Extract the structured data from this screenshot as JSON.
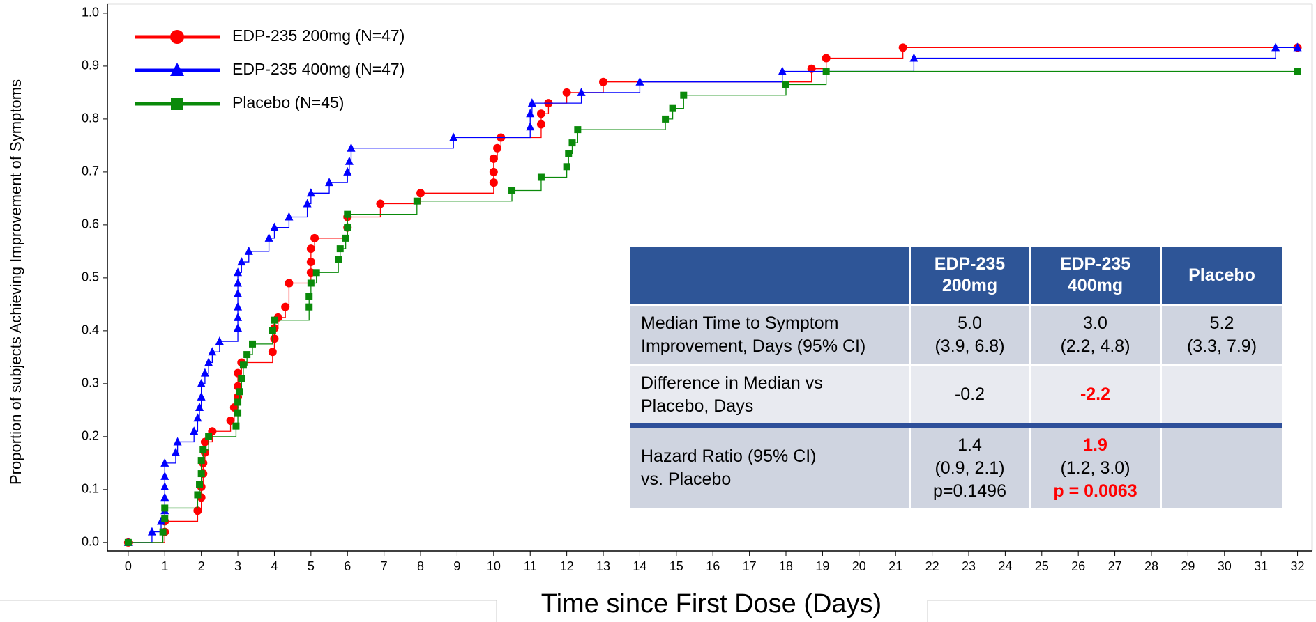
{
  "chart_data": {
    "type": "step",
    "ylabel": "Proportion of subjects Achieving Improvement of Symptoms",
    "xlabel": "Time since First Dose (Days)",
    "xlim": [
      -0.57,
      32.39
    ],
    "ylim": [
      -0.016,
      1.017
    ],
    "xticks": [
      0,
      1,
      2,
      3,
      4,
      5,
      6,
      7,
      8,
      9,
      10,
      11,
      12,
      13,
      14,
      15,
      16,
      17,
      18,
      19,
      20,
      21,
      22,
      23,
      24,
      25,
      26,
      27,
      28,
      29,
      30,
      31,
      32
    ],
    "yticks": [
      {
        "value": 0,
        "label": "0.0"
      },
      0.1,
      0.2,
      0.3,
      0.4,
      0.5,
      0.6,
      0.7,
      0.8,
      0.9,
      {
        "value": 1,
        "label": "1.0"
      }
    ],
    "legend": "upper left",
    "series": [
      {
        "name": "EDP-235 200mg (N=47)",
        "color": "#ff0000",
        "marker": "circle",
        "x": [
          0,
          1,
          1,
          1.9,
          2,
          2,
          2.05,
          2.05,
          2.1,
          2.1,
          2.3,
          2.8,
          2.9,
          3,
          3,
          3,
          3.1,
          3.95,
          4,
          4,
          4.1,
          4.3,
          4.4,
          5,
          5,
          5,
          5.1,
          6,
          6,
          6.9,
          8,
          10,
          10,
          10,
          10.1,
          10.2,
          11.3,
          11.3,
          11.5,
          12,
          13,
          18.7,
          19.1,
          21.2,
          32
        ],
        "values": [
          0,
          0.02,
          0.04,
          0.06,
          0.085,
          0.105,
          0.13,
          0.15,
          0.17,
          0.19,
          0.21,
          0.23,
          0.255,
          0.275,
          0.295,
          0.32,
          0.34,
          0.36,
          0.385,
          0.405,
          0.425,
          0.445,
          0.49,
          0.51,
          0.53,
          0.555,
          0.575,
          0.595,
          0.615,
          0.64,
          0.66,
          0.68,
          0.7,
          0.725,
          0.745,
          0.765,
          0.79,
          0.81,
          0.83,
          0.85,
          0.87,
          0.895,
          0.915,
          0.935,
          0.935
        ]
      },
      {
        "name": "EDP-235 400mg (N=47)",
        "color": "#0000ff",
        "marker": "triangle",
        "x": [
          0,
          0.65,
          0.9,
          1,
          1,
          1,
          1,
          1,
          1.3,
          1.35,
          1.8,
          1.9,
          1.95,
          2,
          2,
          2.1,
          2.2,
          2.3,
          2.5,
          3,
          3,
          3,
          3,
          3,
          3,
          3.1,
          3.3,
          3.85,
          4,
          4.4,
          4.9,
          5,
          5.5,
          6,
          6.05,
          6.1,
          8.9,
          11,
          11,
          11.05,
          12.4,
          14,
          17.9,
          21.5,
          31.4,
          32
        ],
        "values": [
          0,
          0.02,
          0.04,
          0.06,
          0.085,
          0.105,
          0.125,
          0.15,
          0.17,
          0.19,
          0.21,
          0.235,
          0.255,
          0.275,
          0.3,
          0.32,
          0.34,
          0.36,
          0.38,
          0.405,
          0.425,
          0.445,
          0.47,
          0.49,
          0.51,
          0.53,
          0.55,
          0.575,
          0.595,
          0.615,
          0.64,
          0.66,
          0.68,
          0.7,
          0.72,
          0.745,
          0.765,
          0.785,
          0.81,
          0.83,
          0.85,
          0.87,
          0.89,
          0.915,
          0.935,
          0.935
        ]
      },
      {
        "name": "Placebo (N=45)",
        "color": "#0a8a0a",
        "marker": "square",
        "x": [
          0,
          0.95,
          1,
          1,
          1.9,
          1.95,
          2,
          2,
          2.05,
          2.2,
          2.95,
          3,
          3,
          3.05,
          3.1,
          3.15,
          3.25,
          3.4,
          3.95,
          4,
          4.95,
          4.95,
          5,
          5.15,
          5.75,
          5.8,
          5.95,
          6,
          6,
          7.9,
          10.5,
          11.3,
          12,
          12.05,
          12.15,
          12.3,
          14.7,
          14.9,
          15.2,
          18,
          19.1,
          32
        ],
        "values": [
          0,
          0.02,
          0.045,
          0.065,
          0.09,
          0.11,
          0.13,
          0.155,
          0.175,
          0.2,
          0.22,
          0.245,
          0.265,
          0.285,
          0.31,
          0.335,
          0.355,
          0.375,
          0.4,
          0.42,
          0.445,
          0.465,
          0.49,
          0.51,
          0.535,
          0.555,
          0.575,
          0.595,
          0.62,
          0.645,
          0.665,
          0.69,
          0.71,
          0.735,
          0.755,
          0.78,
          0.8,
          0.82,
          0.845,
          0.865,
          0.89,
          0.89
        ]
      }
    ]
  },
  "table": {
    "header": [
      [],
      [
        "EDP-235",
        "200mg"
      ],
      [
        "EDP-235",
        "400mg"
      ],
      [
        "Placebo"
      ]
    ],
    "rows": [
      [
        [
          "Median Time to Symptom",
          "Improvement, Days (95% CI)"
        ],
        [
          "5.0",
          "(3.9, 6.8)"
        ],
        [
          "3.0",
          "(2.2, 4.8)"
        ],
        [
          "5.2",
          "(3.3, 7.9)"
        ]
      ],
      [
        [
          "Difference in Median vs",
          "Placebo, Days"
        ],
        [
          "-0.2"
        ],
        [
          "-2.2"
        ],
        []
      ],
      [
        [
          "Hazard Ratio (95% CI)",
          "vs. Placebo"
        ],
        [
          "1.4",
          "(0.9, 2.1)",
          "p=0.1496"
        ],
        [
          "1.9",
          "(1.2, 3.0)",
          "p = 0.0063"
        ],
        []
      ]
    ]
  }
}
